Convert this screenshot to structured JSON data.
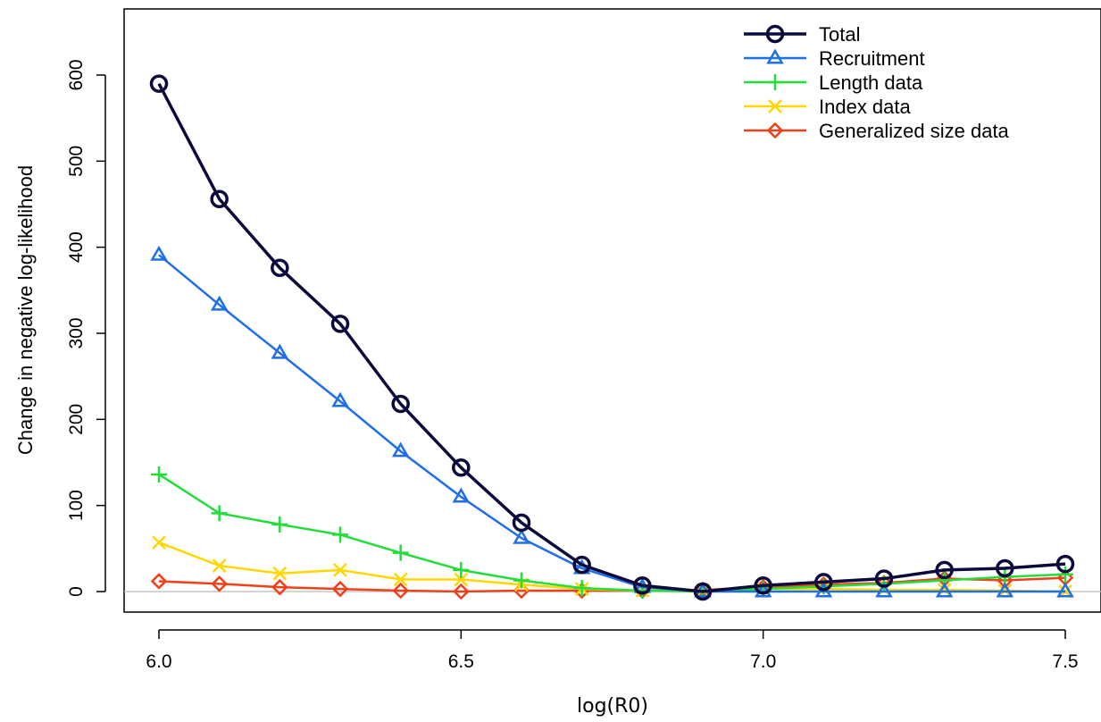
{
  "chart_data": {
    "type": "line",
    "title": "",
    "xlabel": "log(R0)",
    "ylabel": "Change in negative log-likelihood",
    "xlim": [
      5.95,
      7.55
    ],
    "ylim": [
      -20,
      675
    ],
    "xticks": [
      6.0,
      6.5,
      7.0,
      7.5
    ],
    "xtick_labels": [
      "6.0",
      "6.5",
      "7.0",
      "7.5"
    ],
    "yticks": [
      0,
      100,
      200,
      300,
      400,
      500,
      600
    ],
    "ytick_labels": [
      "0",
      "100",
      "200",
      "300",
      "400",
      "500",
      "600"
    ],
    "zero_line": true,
    "grid": false,
    "legend_position": "top-right",
    "x": [
      6.0,
      6.1,
      6.2,
      6.3,
      6.4,
      6.5,
      6.6,
      6.7,
      6.8,
      6.9,
      7.0,
      7.1,
      7.2,
      7.3,
      7.4,
      7.5
    ],
    "series": [
      {
        "name": "Total",
        "color": "#0a0a3c",
        "marker": "circle",
        "line_width": 3.5,
        "values": [
          590,
          456,
          376,
          311,
          218,
          144,
          80,
          31,
          7,
          0,
          7,
          11,
          15,
          25,
          27,
          32
        ]
      },
      {
        "name": "Recruitment",
        "color": "#1f6fe8",
        "marker": "triangle",
        "line_width": 2.5,
        "values": [
          391,
          333,
          277,
          221,
          163,
          110,
          62,
          27,
          5,
          0,
          0,
          0,
          0,
          0,
          0,
          0
        ]
      },
      {
        "name": "Length data",
        "color": "#22dd3a",
        "marker": "plus",
        "line_width": 2.5,
        "values": [
          136,
          91,
          78,
          66,
          45,
          25,
          13,
          4,
          1,
          0,
          3,
          6,
          9,
          13,
          17,
          20
        ]
      },
      {
        "name": "Index data",
        "color": "#ffd700",
        "marker": "cross",
        "line_width": 2.5,
        "values": [
          57,
          30,
          21,
          25,
          14,
          14,
          8,
          3,
          1,
          2,
          3,
          3,
          2,
          2,
          1,
          0
        ]
      },
      {
        "name": "Generalized size data",
        "color": "#f0401a",
        "marker": "diamond",
        "line_width": 2.5,
        "values": [
          12,
          9,
          5,
          3,
          1,
          0,
          1,
          1,
          1,
          2,
          5,
          8,
          10,
          15,
          13,
          16
        ]
      }
    ]
  }
}
